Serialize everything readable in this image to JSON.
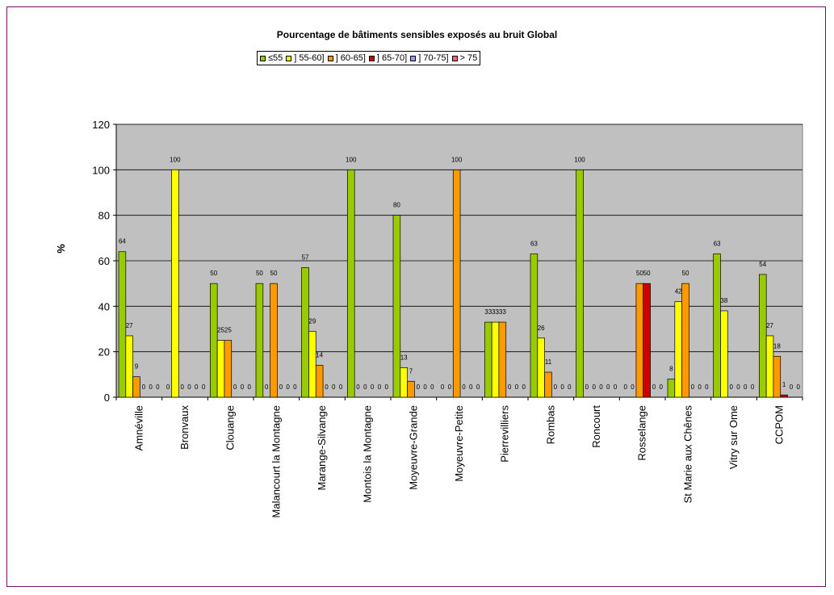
{
  "chart_data": {
    "type": "bar",
    "title": "Pourcentage de bâtiments sensibles exposés au bruit Global",
    "ylabel": "%",
    "xlabel": "",
    "ylim": [
      0,
      120
    ],
    "yticks": [
      "0",
      "20",
      "40",
      "60",
      "80",
      "100",
      "120"
    ],
    "grid": true,
    "legend_position": "top-center",
    "plot_background": "#c0c0c0",
    "categories": [
      "Amnéville",
      "Bronvaux",
      "Clouange",
      "Malancourt la Montagne",
      "Marange-Silvange",
      "Montois la Montagne",
      "Moyeuvre-Grande",
      "Moyeuvre-Petite",
      "Pierrevilliers",
      "Rombas",
      "Roncourt",
      "Rosselange",
      "St Marie aux Chênes",
      "Vitry sur Ome",
      "CCPOM"
    ],
    "series": [
      {
        "name": "≤55",
        "color": "#99cc00",
        "values": [
          64,
          0,
          50,
          50,
          57,
          100,
          80,
          0,
          33,
          63,
          100,
          0,
          8,
          63,
          54
        ],
        "labels": [
          "64",
          "0",
          "50",
          "50",
          "57",
          "100",
          "80",
          "0",
          "33",
          "63",
          "100",
          "0",
          "8",
          "63",
          "54"
        ]
      },
      {
        "name": "] 55-60]",
        "color": "#ffff00",
        "values": [
          27,
          100,
          25,
          0,
          29,
          0,
          13,
          0,
          33,
          26,
          0,
          0,
          42,
          38,
          27
        ],
        "labels": [
          "27",
          "100",
          "25",
          "0",
          "29",
          "0",
          "13",
          "0",
          "33",
          "26",
          "0",
          "0",
          "42",
          "38",
          "27"
        ]
      },
      {
        "name": "] 60-65]",
        "color": "#ff9900",
        "values": [
          9,
          0,
          25,
          50,
          14,
          0,
          7,
          100,
          33,
          11,
          0,
          50,
          50,
          0,
          18
        ],
        "labels": [
          "9",
          "0",
          "25",
          "50",
          "14",
          "0",
          "7",
          "100",
          "33",
          "11",
          "0",
          "50",
          "50",
          "0",
          "18"
        ]
      },
      {
        "name": "] 65-70]",
        "color": "#cc0000",
        "values": [
          0,
          0,
          0,
          0,
          0,
          0,
          0,
          0,
          0,
          0,
          0,
          50,
          0,
          0,
          1
        ],
        "labels": [
          "0",
          "0",
          "0",
          "0",
          "0",
          "0",
          "0",
          "0",
          "0",
          "0",
          "0",
          "50",
          "0",
          "0",
          "1"
        ]
      },
      {
        "name": "] 70-75]",
        "color": "#9999ff",
        "values": [
          0,
          0,
          0,
          0,
          0,
          0,
          0,
          0,
          0,
          0,
          0,
          0,
          0,
          0,
          0
        ],
        "labels": [
          "0",
          "0",
          "0",
          "0",
          "0",
          "0",
          "0",
          "0",
          "0",
          "0",
          "0",
          "0",
          "0",
          "0",
          "0"
        ]
      },
      {
        "name": "> 75",
        "color": "#ff6666",
        "values": [
          0,
          0,
          0,
          0,
          0,
          0,
          0,
          0,
          0,
          0,
          0,
          0,
          0,
          0,
          0
        ],
        "labels": [
          "0",
          "0",
          "0",
          "0",
          "0",
          "0",
          "0",
          "0",
          "0",
          "0",
          "0",
          "0",
          "0",
          "0",
          "0"
        ]
      }
    ]
  }
}
